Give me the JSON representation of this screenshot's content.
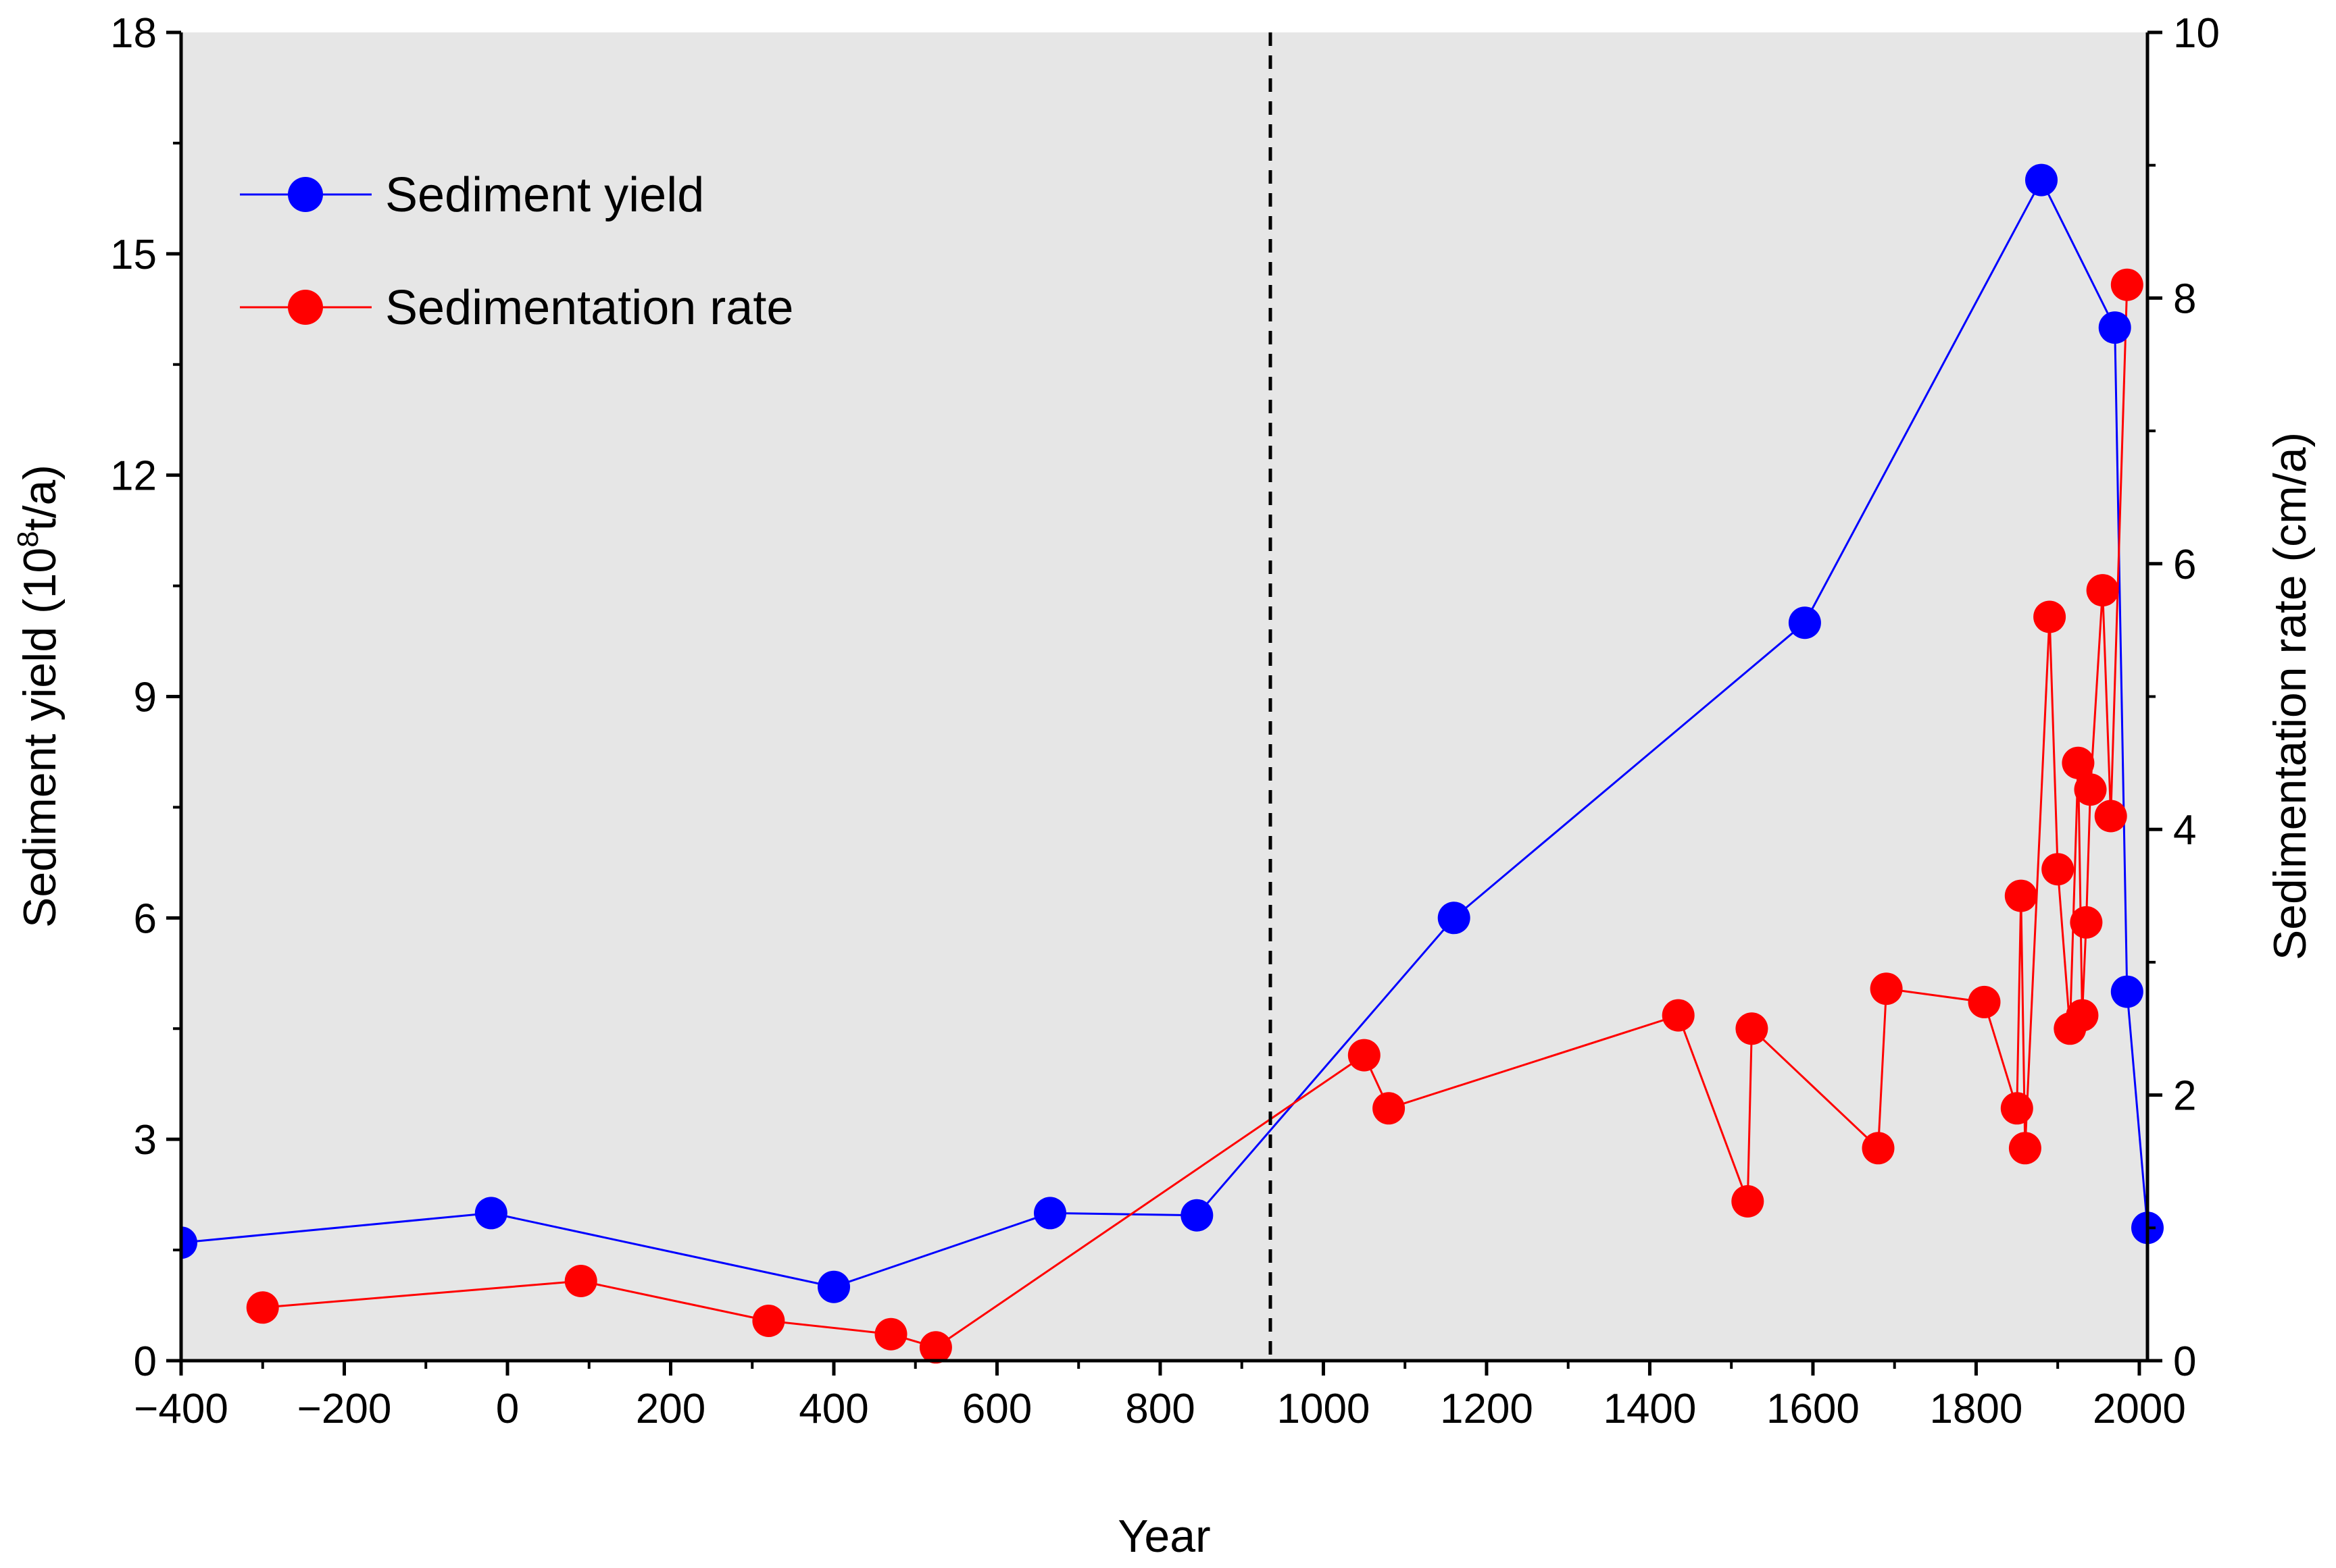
{
  "chart_data": {
    "type": "line",
    "title": "",
    "xlabel": "Year",
    "ylabel_left": "Sediment yield (10",
    "ylabel_left_sup": "8",
    "ylabel_left_suffix": "t/a)",
    "ylabel_right": "Sedimentation rate (cm/a)",
    "xlim": [
      -400,
      2010
    ],
    "ylim_left": [
      0,
      18
    ],
    "ylim_right": [
      0,
      10
    ],
    "x_ticks": [
      -400,
      -200,
      0,
      200,
      400,
      600,
      800,
      1000,
      1200,
      1400,
      1600,
      1800,
      2000
    ],
    "x_tick_labels": [
      "−400",
      "−200",
      "0",
      "200",
      "400",
      "600",
      "800",
      "1000",
      "1200",
      "1400",
      "1600",
      "1800",
      "2000"
    ],
    "y_left_ticks": [
      0,
      3,
      6,
      9,
      12,
      15,
      18
    ],
    "y_left_tick_labels": [
      "0",
      "3",
      "6",
      "9",
      "12",
      "15",
      "18"
    ],
    "y_right_ticks": [
      0,
      2,
      4,
      6,
      8,
      10
    ],
    "y_right_tick_labels": [
      "0",
      "2",
      "4",
      "6",
      "8",
      "10"
    ],
    "vline_x": 935,
    "legend_position": "top-left",
    "series": [
      {
        "name": "Sediment yield",
        "axis": "left",
        "color": "#0000ff",
        "x": [
          -400,
          -20,
          400,
          665,
          845,
          1160,
          1590,
          1880,
          1970,
          1985,
          2010
        ],
        "y": [
          1.6,
          2.0,
          1.0,
          2.0,
          1.97,
          6.0,
          10.0,
          16.0,
          14.0,
          5.0,
          1.8
        ]
      },
      {
        "name": "Sedimentation rate",
        "axis": "right",
        "color": "#ff0000",
        "x": [
          -300,
          90,
          320,
          470,
          525,
          1050,
          1080,
          1435,
          1520,
          1525,
          1680,
          1690,
          1810,
          1850,
          1855,
          1860,
          1890,
          1900,
          1915,
          1925,
          1930,
          1935,
          1940,
          1955,
          1965,
          1985
        ],
        "y": [
          0.4,
          0.6,
          0.3,
          0.2,
          0.1,
          2.3,
          1.9,
          2.6,
          1.2,
          2.5,
          1.6,
          2.8,
          2.7,
          1.9,
          3.5,
          1.6,
          5.6,
          3.7,
          2.5,
          4.5,
          2.6,
          3.3,
          4.3,
          5.8,
          4.1,
          8.1
        ]
      }
    ]
  }
}
